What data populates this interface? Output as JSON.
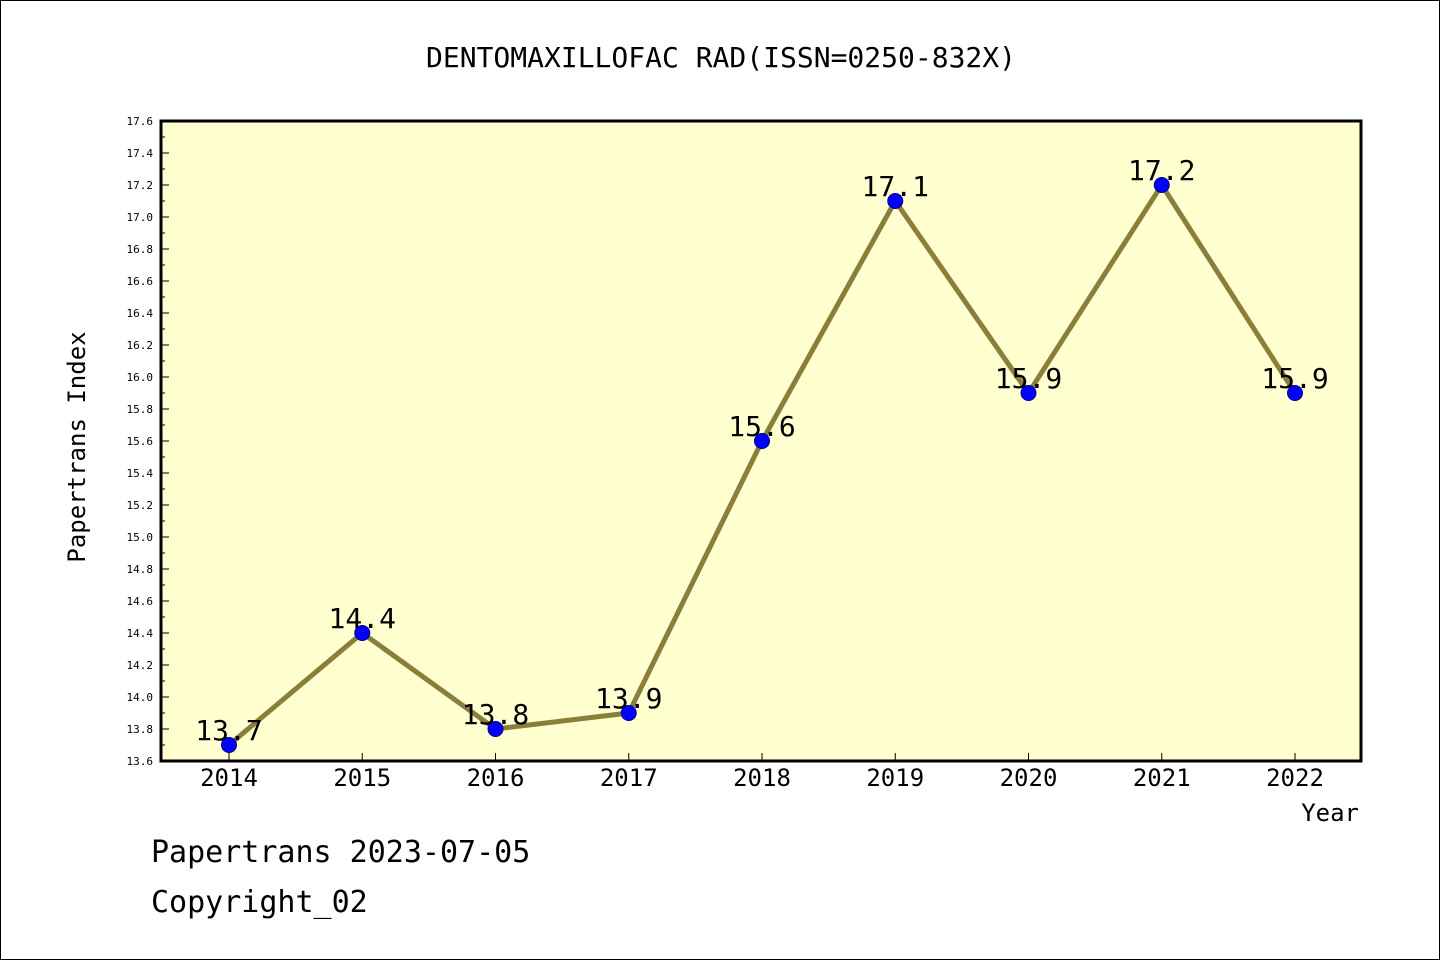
{
  "chart_data": {
    "type": "line",
    "title": "DENTOMAXILLOFAC RAD(ISSN=0250-832X)",
    "xlabel": "Year",
    "ylabel": "Papertrans Index",
    "x": [
      "2014",
      "2015",
      "2016",
      "2017",
      "2018",
      "2019",
      "2020",
      "2021",
      "2022"
    ],
    "series": [
      {
        "values": [
          13.7,
          14.4,
          13.8,
          13.9,
          15.6,
          17.1,
          15.9,
          17.2,
          15.9
        ],
        "labels": [
          "13.7",
          "14.4",
          "13.8",
          "13.9",
          "15.6",
          "17.1",
          "15.9",
          "17.2",
          "15.9"
        ]
      }
    ],
    "ylim": [
      13.6,
      17.6
    ],
    "yticks": [
      "13.6",
      "13.8",
      "14.0",
      "14.2",
      "14.4",
      "14.6",
      "14.8",
      "15.0",
      "15.2",
      "15.4",
      "15.6",
      "15.8",
      "16.0",
      "16.2",
      "16.4",
      "16.6",
      "16.8",
      "17.0",
      "17.2",
      "17.4",
      "17.6"
    ],
    "grid": false,
    "colors": {
      "plot_background": "#ffffd0",
      "line": "#8b7d3a",
      "marker": "#0000ff",
      "marker_edge": "#00008b"
    }
  },
  "footer": {
    "date_text": "Papertrans 2023-07-05",
    "copyright_text": "Copyright_02"
  }
}
